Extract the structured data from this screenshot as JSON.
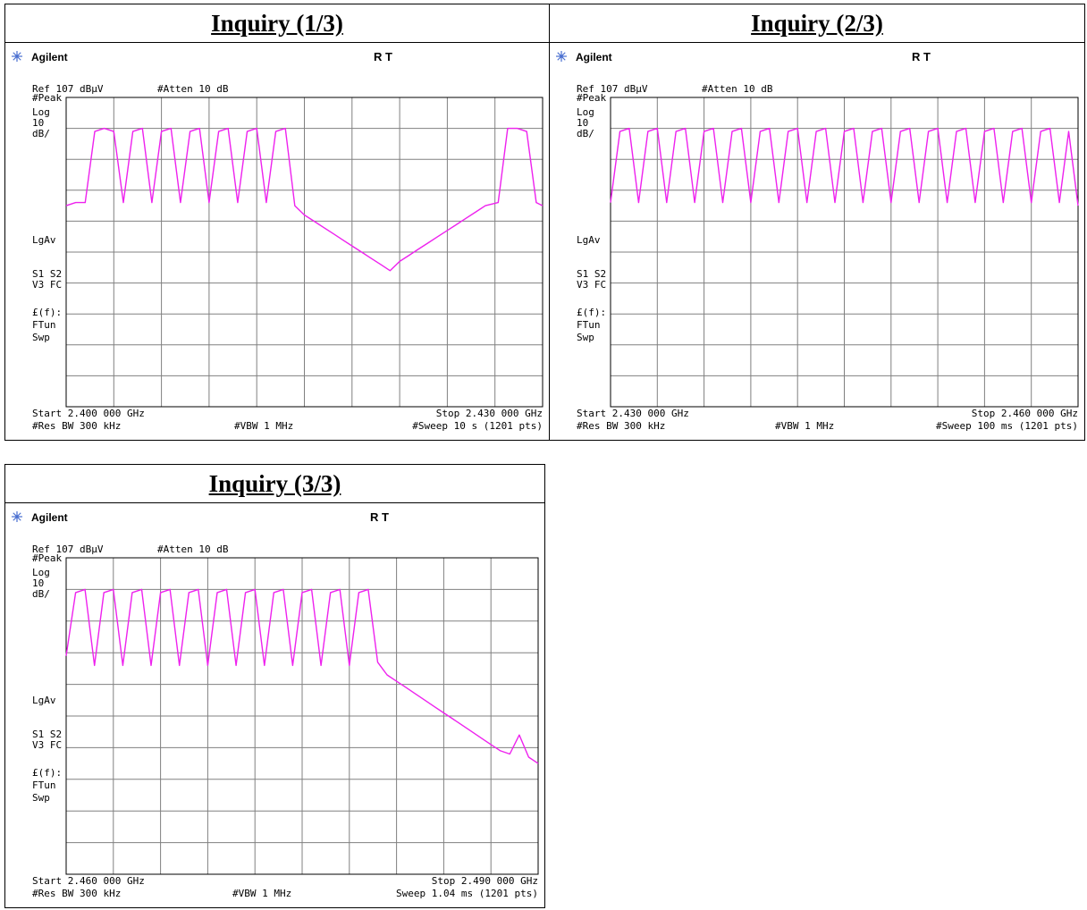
{
  "shared": {
    "brand": "Agilent",
    "brand_icon": "starburst-icon",
    "status_flags": "R  T",
    "ref_level": "Ref 107 dBµV",
    "attenuation": "#Atten 10 dB",
    "detector": "#Peak",
    "scale_type": "Log",
    "scale_value": "10",
    "scale_unit": "dB/",
    "average_mode": "LgAv",
    "status_s": "S1  S2",
    "status_v": "V3  FC",
    "func_label": "£(f):",
    "ftun_label": "FTun",
    "swp_label": "Swp",
    "res_bw": "#Res BW 300 kHz",
    "vbw": "#VBW 1 MHz",
    "trace_color": "#ee22ee",
    "grid_color": "#808080"
  },
  "panels": [
    {
      "title": "Inquiry (1/3)",
      "start": "Start 2.400 000 GHz",
      "stop": "Stop 2.430 000 GHz",
      "sweep": "#Sweep 10 s (1201 pts)"
    },
    {
      "title": "Inquiry (2/3)",
      "start": "Start 2.430 000 GHz",
      "stop": "Stop 2.460 000 GHz",
      "sweep": "#Sweep 100 ms (1201 pts)"
    },
    {
      "title": "Inquiry (3/3)",
      "start": "Start 2.460 000 GHz",
      "stop": "Stop 2.490 000 GHz",
      "sweep": "Sweep 1.04 ms (1201 pts)"
    }
  ],
  "chart_data": [
    {
      "type": "line",
      "ylabel": "dBµV",
      "xlim": [
        2.4,
        2.43
      ],
      "ylim": [
        7,
        107
      ],
      "grid": true,
      "series": [
        {
          "x": [
            2.4,
            2.4006,
            2.4012,
            2.4018,
            2.4024,
            2.403,
            2.4036,
            2.4042,
            2.4048,
            2.4054,
            2.406,
            2.4066,
            2.4072,
            2.4078,
            2.4084,
            2.409,
            2.4096,
            2.4102,
            2.4108,
            2.4114,
            2.412,
            2.4126,
            2.4132,
            2.4138,
            2.4144,
            2.415,
            2.4156,
            2.4162,
            2.4168,
            2.4174,
            2.418,
            2.4186,
            2.4192,
            2.4198,
            2.4204,
            2.421,
            2.4216,
            2.4222,
            2.4228,
            2.4234,
            2.424,
            2.4246,
            2.4252,
            2.4258,
            2.4264,
            2.4272,
            2.4278,
            2.4284,
            2.429,
            2.4296,
            2.43
          ],
          "y": [
            72,
            73,
            73,
            96,
            97,
            96,
            73,
            96,
            97,
            73,
            96,
            97,
            73,
            96,
            97,
            73,
            96,
            97,
            73,
            96,
            97,
            73,
            96,
            97,
            72,
            69,
            67,
            65,
            63,
            61,
            59,
            57,
            55,
            53,
            51,
            54,
            56,
            58,
            60,
            62,
            64,
            66,
            68,
            70,
            72,
            73,
            97,
            97,
            96,
            73,
            72
          ]
        }
      ]
    },
    {
      "type": "line",
      "ylabel": "dBµV",
      "xlim": [
        2.43,
        2.46
      ],
      "ylim": [
        7,
        107
      ],
      "grid": true,
      "series": [
        {
          "x": [
            2.43,
            2.4306,
            2.4312,
            2.4318,
            2.4324,
            2.433,
            2.4336,
            2.4342,
            2.4348,
            2.4354,
            2.436,
            2.4366,
            2.4372,
            2.4378,
            2.4384,
            2.439,
            2.4396,
            2.4402,
            2.4408,
            2.4414,
            2.442,
            2.4426,
            2.4432,
            2.4438,
            2.4444,
            2.445,
            2.4456,
            2.4462,
            2.4468,
            2.4474,
            2.448,
            2.4486,
            2.4492,
            2.4498,
            2.4504,
            2.451,
            2.4516,
            2.4522,
            2.4528,
            2.4534,
            2.454,
            2.4546,
            2.4552,
            2.4558,
            2.4564,
            2.457,
            2.4576,
            2.4582,
            2.4588,
            2.4594,
            2.46
          ],
          "y": [
            73,
            96,
            97,
            73,
            96,
            97,
            73,
            96,
            97,
            73,
            96,
            97,
            73,
            96,
            97,
            73,
            96,
            97,
            73,
            96,
            97,
            73,
            96,
            97,
            73,
            96,
            97,
            73,
            96,
            97,
            73,
            96,
            97,
            73,
            96,
            97,
            73,
            96,
            97,
            73,
            96,
            97,
            73,
            96,
            97,
            73,
            96,
            97,
            73,
            96,
            72
          ]
        }
      ]
    },
    {
      "type": "line",
      "ylabel": "dBµV",
      "xlim": [
        2.46,
        2.49
      ],
      "ylim": [
        7,
        107
      ],
      "grid": true,
      "series": [
        {
          "x": [
            2.46,
            2.4606,
            2.4612,
            2.4618,
            2.4624,
            2.463,
            2.4636,
            2.4642,
            2.4648,
            2.4654,
            2.466,
            2.4666,
            2.4672,
            2.4678,
            2.4684,
            2.469,
            2.4696,
            2.4702,
            2.4708,
            2.4714,
            2.472,
            2.4726,
            2.4732,
            2.4738,
            2.4744,
            2.475,
            2.4756,
            2.4762,
            2.4768,
            2.4774,
            2.478,
            2.4786,
            2.4792,
            2.4798,
            2.4804,
            2.481,
            2.4816,
            2.4822,
            2.4828,
            2.4834,
            2.484,
            2.4846,
            2.4852,
            2.4858,
            2.4864,
            2.487,
            2.4876,
            2.4882,
            2.4888,
            2.4894,
            2.49
          ],
          "y": [
            76,
            96,
            97,
            73,
            96,
            97,
            73,
            96,
            97,
            73,
            96,
            97,
            73,
            96,
            97,
            73,
            96,
            97,
            73,
            96,
            97,
            73,
            96,
            97,
            73,
            96,
            97,
            73,
            96,
            97,
            73,
            96,
            97,
            74,
            70,
            68,
            66,
            64,
            62,
            60,
            58,
            56,
            54,
            52,
            50,
            48,
            46,
            45,
            51,
            44,
            42
          ]
        }
      ]
    }
  ]
}
